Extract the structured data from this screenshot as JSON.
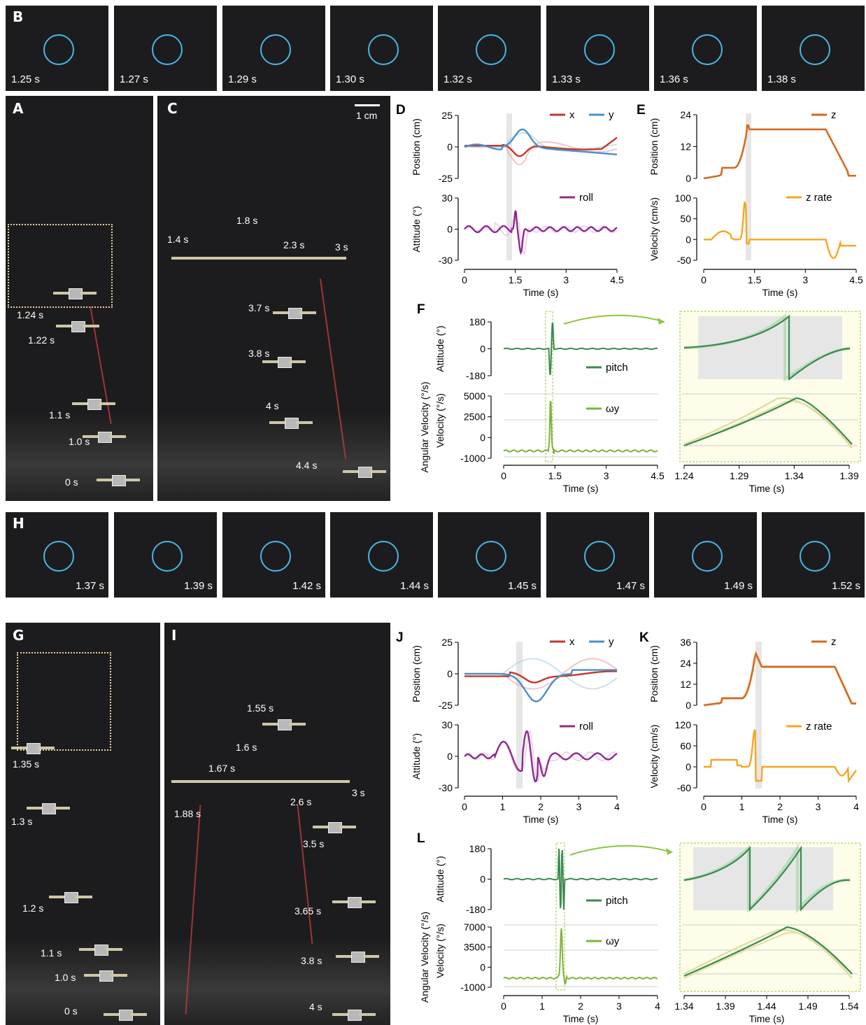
{
  "panels": {
    "B": {
      "label": "B",
      "times": [
        "1.25 s",
        "1.27 s",
        "1.29 s",
        "1.30 s",
        "1.32 s",
        "1.33 s",
        "1.36 s",
        "1.38 s"
      ]
    },
    "H": {
      "label": "H",
      "times": [
        "1.37 s",
        "1.39 s",
        "1.42 s",
        "1.44 s",
        "1.45 s",
        "1.47 s",
        "1.49 s",
        "1.52 s"
      ]
    },
    "A": {
      "label": "A",
      "times": [
        "1.24 s",
        "1.22 s",
        "1.1 s",
        "1.0 s",
        "0 s"
      ]
    },
    "C": {
      "label": "C",
      "scale": "1 cm",
      "times": [
        "1.4 s",
        "1.8 s",
        "2.3 s",
        "3 s",
        "3.7 s",
        "3.8 s",
        "4 s",
        "4.4 s"
      ]
    },
    "G": {
      "label": "G",
      "times": [
        "1.35 s",
        "1.3 s",
        "1.2 s",
        "1.1 s",
        "1.0 s",
        "0 s"
      ]
    },
    "I": {
      "label": "I",
      "times": [
        "1.55 s",
        "1.6 s",
        "1.67 s",
        "1.88 s",
        "2.6 s",
        "3 s",
        "3.5 s",
        "3.65 s",
        "3.8 s",
        "4 s"
      ]
    }
  },
  "chart_data": [
    {
      "panel": "D",
      "type": "line",
      "xlabel": "Time (s)",
      "x_ticks": [
        "0",
        "1.5",
        "3",
        "4.5"
      ],
      "top": {
        "ylabel": "Position (cm)",
        "y_ticks": [
          "25",
          "0",
          "-25"
        ],
        "ylim": [
          -25,
          25
        ],
        "series": [
          {
            "name": "x",
            "color": "#c0392b"
          },
          {
            "name": "y",
            "color": "#4a90c8"
          }
        ]
      },
      "bottom": {
        "ylabel": "Attitude (°)",
        "y_ticks": [
          "30",
          "0",
          "-30"
        ],
        "ylim": [
          -30,
          30
        ],
        "series": [
          {
            "name": "roll",
            "color": "#8e2a8e"
          }
        ]
      }
    },
    {
      "panel": "E",
      "type": "line",
      "xlabel": "Time (s)",
      "x_ticks": [
        "0",
        "1.5",
        "3",
        "4.5"
      ],
      "top": {
        "ylabel": "Position (cm)",
        "y_ticks": [
          "24",
          "12",
          "0"
        ],
        "ylim": [
          0,
          24
        ],
        "series": [
          {
            "name": "z",
            "color": "#d2691e"
          }
        ]
      },
      "bottom": {
        "ylabel": "Velocity (cm/s)",
        "y_ticks": [
          "100",
          "50",
          "0",
          "-50"
        ],
        "ylim": [
          -50,
          100
        ],
        "series": [
          {
            "name": "z rate",
            "color": "#f5a623"
          }
        ]
      }
    },
    {
      "panel": "F",
      "type": "line",
      "xlabel": "Time (s)",
      "x_ticks": [
        "0",
        "1.5",
        "3",
        "4.5"
      ],
      "zoom_x_ticks": [
        "1.24",
        "1.29",
        "1.34",
        "1.39"
      ],
      "top": {
        "ylabel": "Attitude (°)",
        "y_ticks": [
          "180",
          "0",
          "-180"
        ],
        "series": [
          {
            "name": "pitch",
            "color": "#3a8a4f"
          }
        ]
      },
      "bottom": {
        "ylabel": "Angular Velocity (°/s)",
        "y_ticks": [
          "5000",
          "2500",
          "0",
          "-1000"
        ],
        "series": [
          {
            "name": "ωy",
            "color": "#7fb23a"
          }
        ]
      }
    },
    {
      "panel": "J",
      "type": "line",
      "xlabel": "Time (s)",
      "x_ticks": [
        "0",
        "1",
        "2",
        "3",
        "4"
      ],
      "top": {
        "ylabel": "Position (cm)",
        "y_ticks": [
          "25",
          "0",
          "-25"
        ],
        "ylim": [
          -25,
          25
        ],
        "series": [
          {
            "name": "x",
            "color": "#c0392b"
          },
          {
            "name": "y",
            "color": "#4a90c8"
          }
        ]
      },
      "bottom": {
        "ylabel": "Attitude (°)",
        "y_ticks": [
          "30",
          "0",
          "-30"
        ],
        "ylim": [
          -30,
          30
        ],
        "series": [
          {
            "name": "roll",
            "color": "#8e2a8e"
          }
        ]
      }
    },
    {
      "panel": "K",
      "type": "line",
      "xlabel": "Time (s)",
      "x_ticks": [
        "0",
        "1",
        "2",
        "3",
        "4"
      ],
      "top": {
        "ylabel": "Position (cm)",
        "y_ticks": [
          "36",
          "24",
          "12",
          "0"
        ],
        "ylim": [
          0,
          36
        ],
        "series": [
          {
            "name": "z",
            "color": "#d2691e"
          }
        ]
      },
      "bottom": {
        "ylabel": "Velocity (cm/s)",
        "y_ticks": [
          "120",
          "60",
          "0",
          "-60"
        ],
        "ylim": [
          -60,
          120
        ],
        "series": [
          {
            "name": "z rate",
            "color": "#f5a623"
          }
        ]
      }
    },
    {
      "panel": "L",
      "type": "line",
      "xlabel": "Time (s)",
      "x_ticks": [
        "0",
        "1",
        "2",
        "3",
        "4"
      ],
      "zoom_x_ticks": [
        "1.34",
        "1.39",
        "1.44",
        "1.49",
        "1.54"
      ],
      "top": {
        "ylabel": "Attitude (°)",
        "y_ticks": [
          "180",
          "0",
          "-180"
        ],
        "series": [
          {
            "name": "pitch",
            "color": "#3a8a4f"
          }
        ]
      },
      "bottom": {
        "ylabel": "Angular Velocity (°/s)",
        "y_ticks": [
          "7000",
          "3500",
          "0",
          "-1000"
        ],
        "series": [
          {
            "name": "ωy",
            "color": "#7fb23a"
          }
        ]
      }
    }
  ]
}
